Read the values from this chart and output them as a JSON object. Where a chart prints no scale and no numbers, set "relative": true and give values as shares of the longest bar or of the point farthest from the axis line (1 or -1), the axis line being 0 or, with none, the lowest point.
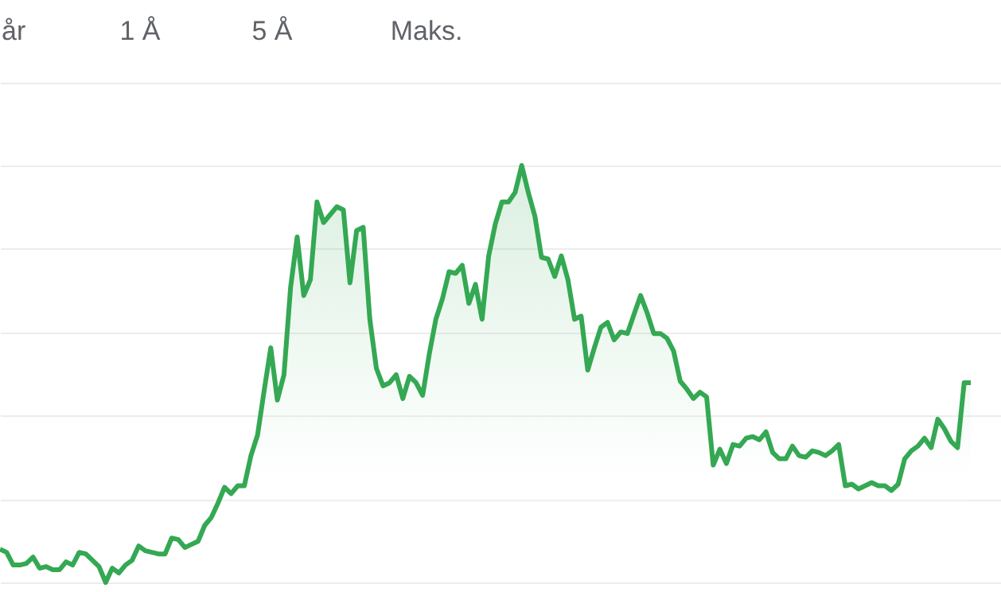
{
  "chart_data": {
    "type": "area",
    "relative": true,
    "grid": "y",
    "annotations": [
      "år",
      "1 Å",
      "5 Å",
      "Maks."
    ],
    "categories": [
      null,
      null,
      null,
      null,
      null,
      null,
      null,
      null,
      null,
      null,
      null,
      null,
      null,
      null,
      null,
      null,
      null,
      null,
      null,
      null,
      null,
      null,
      null,
      null,
      null,
      null,
      null,
      null,
      null,
      null,
      null,
      null,
      null,
      null,
      null,
      null,
      null,
      null,
      null,
      null,
      null,
      null,
      null,
      null,
      null,
      null,
      null,
      null,
      null,
      null,
      null,
      null,
      null,
      null,
      null,
      null,
      null,
      null,
      null,
      null,
      null,
      null,
      null,
      null,
      null,
      null,
      null,
      null,
      null,
      null,
      null,
      null,
      null,
      null,
      null,
      null,
      null,
      null,
      null,
      null,
      null,
      null,
      null,
      null,
      null,
      null,
      null,
      null,
      null,
      null,
      null,
      null,
      null,
      null,
      null,
      null,
      null,
      null,
      null,
      null,
      null,
      null,
      null,
      null,
      null,
      null,
      null,
      null,
      null,
      null,
      null,
      null,
      null,
      null,
      null,
      null,
      null,
      null,
      null,
      null,
      null,
      null,
      null,
      null,
      null,
      null,
      null,
      null,
      null,
      null,
      null,
      null,
      null,
      null,
      null,
      null,
      null,
      null,
      null,
      null,
      null,
      null,
      null,
      null,
      null,
      null,
      null,
      null
    ],
    "series": [
      {
        "color": "#34a853",
        "values": [
          0.0798,
          0.0722,
          0.0418,
          0.0418,
          0.0456,
          0.0608,
          0.0342,
          0.038,
          0.0304,
          0.0304,
          0.0494,
          0.0418,
          0.0722,
          0.0684,
          0.0532,
          0.038,
          0.0,
          0.0342,
          0.0228,
          0.0418,
          0.0532,
          0.0875,
          0.076,
          0.0722,
          0.0684,
          0.0684,
          0.1065,
          0.1027,
          0.0837,
          0.0913,
          0.0989,
          0.1369,
          0.1559,
          0.1901,
          0.2281,
          0.2129,
          0.2319,
          0.2319,
          0.3042,
          0.3536,
          0.4601,
          0.5627,
          0.4373,
          0.4981,
          0.7072,
          0.8289,
          0.6882,
          0.7262,
          0.9125,
          0.8631,
          0.8821,
          0.9011,
          0.8935,
          0.7186,
          0.8441,
          0.8517,
          0.6312,
          0.5133,
          0.4715,
          0.4791,
          0.4981,
          0.4411,
          0.4943,
          0.4791,
          0.4487,
          0.5475,
          0.6312,
          0.6806,
          0.7452,
          0.7414,
          0.7605,
          0.6692,
          0.7148,
          0.6312,
          0.7833,
          0.8593,
          0.9125,
          0.9125,
          0.9354,
          1.0,
          0.9354,
          0.8783,
          0.7795,
          0.7757,
          0.7338,
          0.7833,
          0.7262,
          0.6312,
          0.6388,
          0.5095,
          0.5627,
          0.6122,
          0.6236,
          0.5817,
          0.6008,
          0.597,
          0.6426,
          0.6882,
          0.6464,
          0.597,
          0.597,
          0.5856,
          0.5551,
          0.4829,
          0.4639,
          0.4411,
          0.4563,
          0.4449,
          0.2814,
          0.3194,
          0.2852,
          0.3308,
          0.327,
          0.346,
          0.3498,
          0.3422,
          0.3612,
          0.3118,
          0.2966,
          0.2966,
          0.327,
          0.3042,
          0.3004,
          0.3156,
          0.3118,
          0.3042,
          0.3156,
          0.3308,
          0.2319,
          0.2357,
          0.2243,
          0.2319,
          0.2395,
          0.2319,
          0.2319,
          0.2205,
          0.2357,
          0.2966,
          0.3156,
          0.327,
          0.346,
          0.3232,
          0.3916,
          0.3688,
          0.3384,
          0.3232,
          0.4791,
          0.4791
        ]
      }
    ]
  }
}
